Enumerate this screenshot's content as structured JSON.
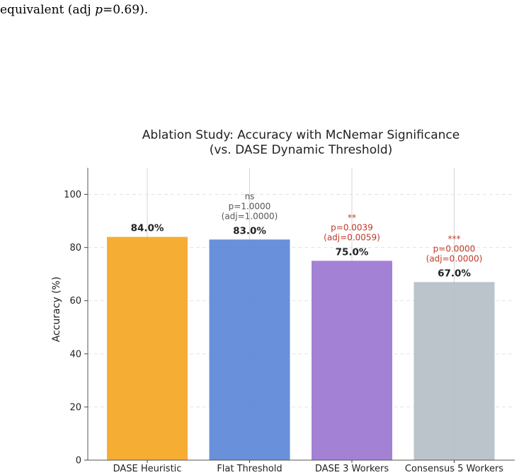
{
  "caption": {
    "lead": "equivalent (adj ",
    "variable": "p",
    "trail": "=0.69)."
  },
  "chart_data": {
    "type": "bar",
    "title": "Ablation Study: Accuracy with McNemar Significance",
    "subtitle": "(vs. DASE Dynamic Threshold)",
    "xlabel": "",
    "ylabel": "Accuracy (%)",
    "ylim": [
      0,
      110
    ],
    "yticks": [
      0,
      20,
      40,
      60,
      80,
      100
    ],
    "grid": "horizontal dashed",
    "categories": [
      "DASE Heuristic",
      "Flat Threshold",
      "DASE 3 Workers",
      "Consensus 5 Workers"
    ],
    "values": [
      84.0,
      83.0,
      75.0,
      67.0
    ],
    "value_labels": [
      "84.0%",
      "83.0%",
      "75.0%",
      "67.0%"
    ],
    "colors": [
      "#f5a623",
      "#5b87d8",
      "#9b77d1",
      "#b4bfc6"
    ],
    "annotations": [
      null,
      {
        "stars": "ns",
        "p": "p=1.0000",
        "adj": "(adj=1.0000)",
        "color": "#555555"
      },
      {
        "stars": "**",
        "p": "p=0.0039",
        "adj": "(adj=0.0059)",
        "color": "#c0392b"
      },
      {
        "stars": "***",
        "p": "p=0.0000",
        "adj": "(adj=0.0000)",
        "color": "#c0392b"
      }
    ]
  }
}
